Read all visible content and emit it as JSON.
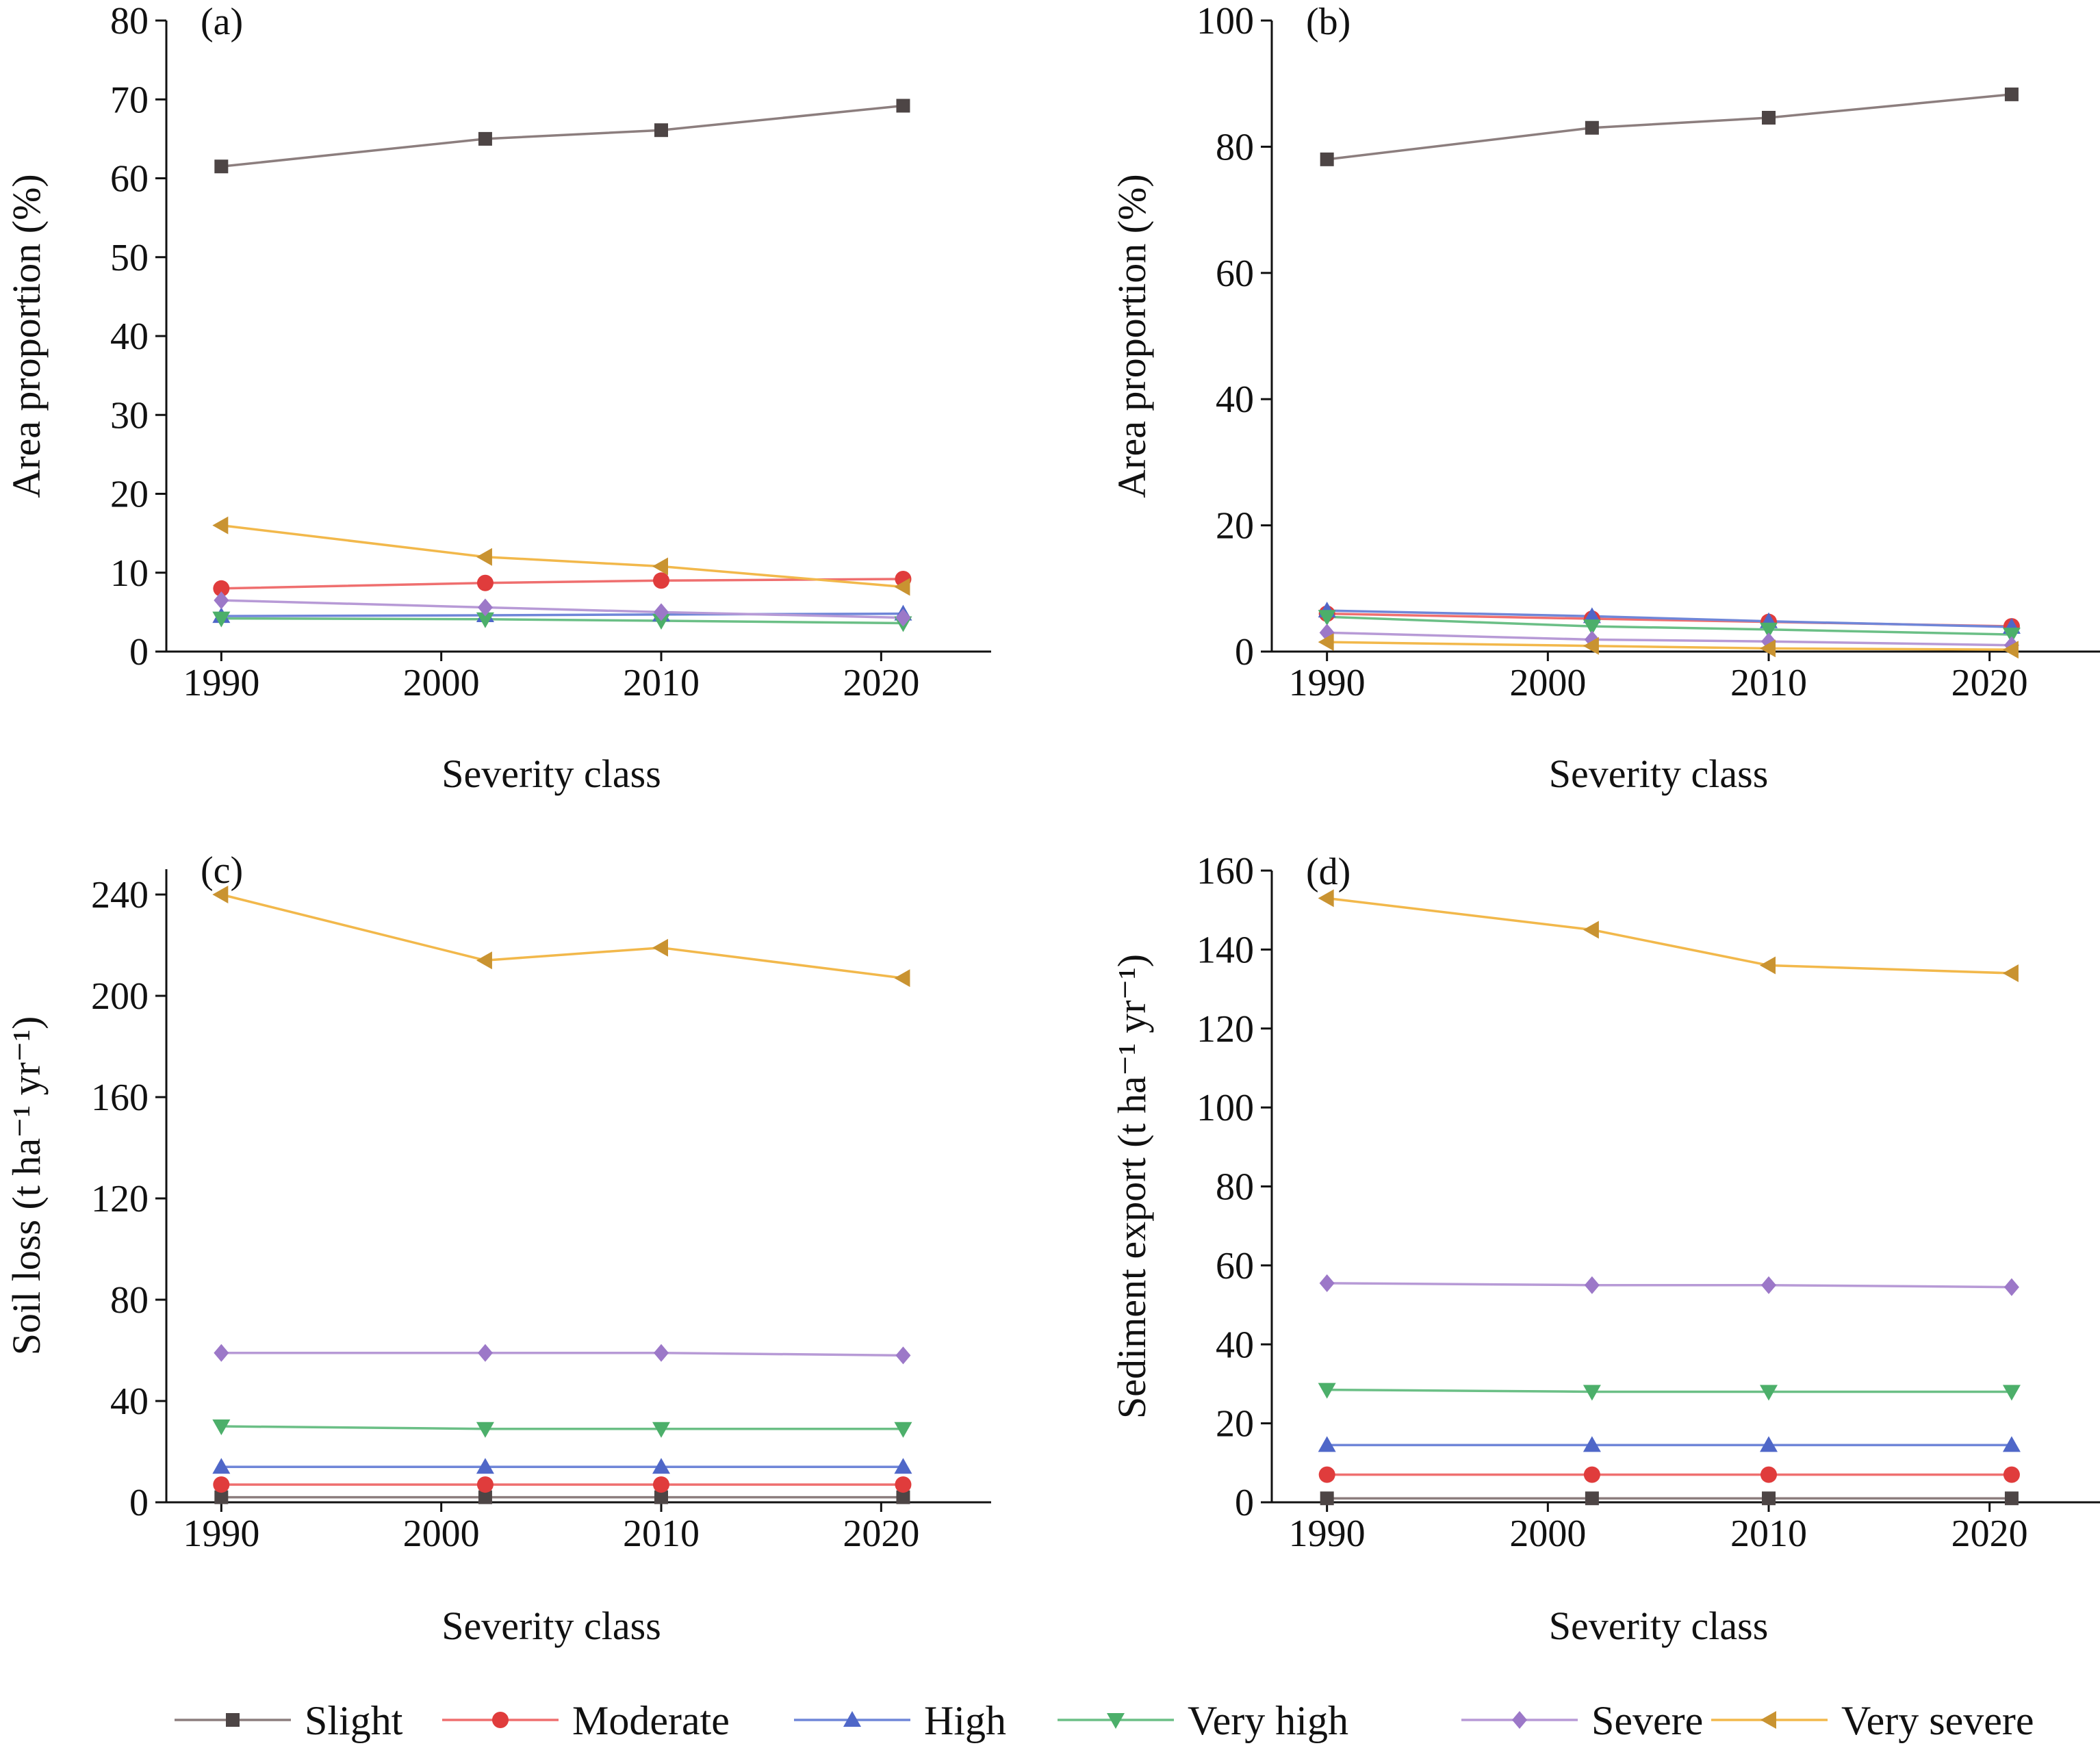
{
  "series_styles": [
    {
      "name": "Slight",
      "color": "#8c7e7e",
      "marker_color": "#4d4545",
      "marker": "square"
    },
    {
      "name": "Moderate",
      "color": "#ef6f6f",
      "marker_color": "#e03c3c",
      "marker": "circle"
    },
    {
      "name": "High",
      "color": "#6f86d8",
      "marker_color": "#4f67c8",
      "marker": "triangle-up"
    },
    {
      "name": "Very high",
      "color": "#6bbf86",
      "marker_color": "#4caf6a",
      "marker": "triangle-down"
    },
    {
      "name": "Severe",
      "color": "#b79ad6",
      "marker_color": "#9c78c8",
      "marker": "diamond"
    },
    {
      "name": "Very severe",
      "color": "#f2b84b",
      "marker_color": "#c99331",
      "marker": "triangle-left"
    }
  ],
  "legend": [
    "Slight",
    "Moderate",
    "High",
    "Very high",
    "Severe",
    "Very severe"
  ],
  "chart_data": [
    {
      "type": "line",
      "panel_label": "(a)",
      "xlabel": "Severity class",
      "ylabel": "Area proportion (%)",
      "x": [
        1990,
        2002,
        2010,
        2021
      ],
      "xticks": [
        1990,
        2000,
        2010,
        2020
      ],
      "xlim": [
        1987.5,
        2025
      ],
      "ylim": [
        0,
        80
      ],
      "yticks": [
        0,
        10,
        20,
        30,
        40,
        50,
        60,
        70,
        80
      ],
      "series": [
        {
          "name": "Slight",
          "values": [
            61.5,
            65.0,
            66.1,
            69.2
          ]
        },
        {
          "name": "Moderate",
          "values": [
            8.0,
            8.7,
            9.0,
            9.2
          ]
        },
        {
          "name": "High",
          "values": [
            4.5,
            4.6,
            4.7,
            4.8
          ]
        },
        {
          "name": "Very high",
          "values": [
            4.2,
            4.1,
            3.9,
            3.6
          ]
        },
        {
          "name": "Severe",
          "values": [
            6.5,
            5.6,
            5.0,
            4.3
          ]
        },
        {
          "name": "Very severe",
          "values": [
            16.0,
            12.0,
            10.8,
            8.2
          ]
        }
      ]
    },
    {
      "type": "line",
      "panel_label": "(b)",
      "xlabel": "Severity class",
      "ylabel": "Area proportion (%)",
      "x": [
        1990,
        2002,
        2010,
        2021
      ],
      "xticks": [
        1990,
        2000,
        2010,
        2020
      ],
      "xlim": [
        1987.5,
        2025
      ],
      "ylim": [
        0,
        100
      ],
      "yticks": [
        0,
        20,
        40,
        60,
        80,
        100
      ],
      "series": [
        {
          "name": "Slight",
          "values": [
            78.0,
            83.0,
            84.6,
            88.3
          ]
        },
        {
          "name": "Moderate",
          "values": [
            6.0,
            5.2,
            4.7,
            4.0
          ]
        },
        {
          "name": "High",
          "values": [
            6.5,
            5.6,
            4.8,
            3.9
          ]
        },
        {
          "name": "Very high",
          "values": [
            5.5,
            4.0,
            3.5,
            2.7
          ]
        },
        {
          "name": "Severe",
          "values": [
            3.0,
            1.9,
            1.6,
            1.0
          ]
        },
        {
          "name": "Very severe",
          "values": [
            1.5,
            0.9,
            0.5,
            0.3
          ]
        }
      ]
    },
    {
      "type": "line",
      "panel_label": "(c)",
      "xlabel": "Severity class",
      "ylabel": "Soil loss (t ha⁻¹ yr⁻¹)",
      "x": [
        1990,
        2002,
        2010,
        2021
      ],
      "xticks": [
        1990,
        2000,
        2010,
        2020
      ],
      "xlim": [
        1987.5,
        2025
      ],
      "ylim": [
        0,
        250
      ],
      "yticks": [
        0,
        40,
        80,
        120,
        160,
        200,
        240
      ],
      "series": [
        {
          "name": "Slight",
          "values": [
            2,
            2,
            2,
            2
          ]
        },
        {
          "name": "Moderate",
          "values": [
            7,
            7,
            7,
            7
          ]
        },
        {
          "name": "High",
          "values": [
            14,
            14,
            14,
            14
          ]
        },
        {
          "name": "Very high",
          "values": [
            30,
            29,
            29,
            29
          ]
        },
        {
          "name": "Severe",
          "values": [
            59,
            59,
            59,
            58
          ]
        },
        {
          "name": "Very severe",
          "values": [
            240,
            214,
            219,
            207
          ]
        }
      ]
    },
    {
      "type": "line",
      "panel_label": "(d)",
      "xlabel": "Severity class",
      "ylabel": "Sediment export (t ha⁻¹ yr⁻¹)",
      "x": [
        1990,
        2002,
        2010,
        2021
      ],
      "xticks": [
        1990,
        2000,
        2010,
        2020
      ],
      "xlim": [
        1987.5,
        2025
      ],
      "ylim": [
        0,
        160
      ],
      "yticks": [
        0,
        20,
        40,
        60,
        80,
        100,
        120,
        140,
        160
      ],
      "series": [
        {
          "name": "Slight",
          "values": [
            1,
            1,
            1,
            1
          ]
        },
        {
          "name": "Moderate",
          "values": [
            7,
            7,
            7,
            7
          ]
        },
        {
          "name": "High",
          "values": [
            14.5,
            14.5,
            14.5,
            14.5
          ]
        },
        {
          "name": "Very high",
          "values": [
            28.5,
            28,
            28,
            28
          ]
        },
        {
          "name": "Severe",
          "values": [
            55.5,
            55,
            55,
            54.5
          ]
        },
        {
          "name": "Very severe",
          "values": [
            153,
            145,
            136,
            134
          ]
        }
      ]
    }
  ]
}
